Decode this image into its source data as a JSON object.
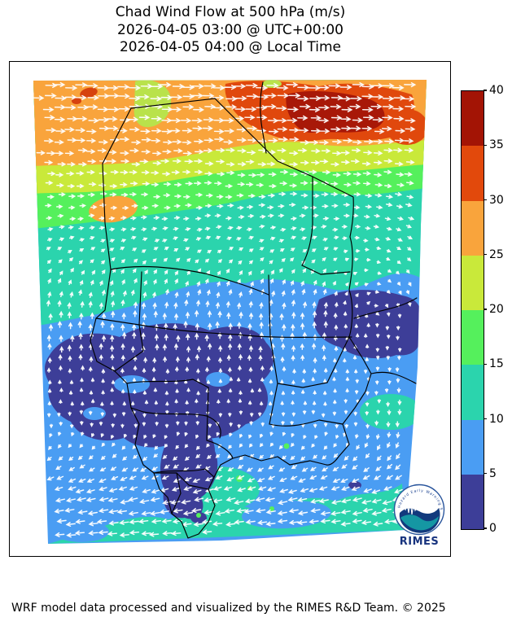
{
  "title": {
    "line1": "Chad Wind Flow at 500 hPa (m/s)",
    "line2": "2026-04-05 03:00 @ UTC+00:00",
    "line3": "2026-04-05 04:00 @ Local Time"
  },
  "footer": {
    "credit": "WRF model data processed and visualized by the RIMES R&D Team. © 2025"
  },
  "colorbar": {
    "min": 0,
    "max": 40,
    "step": 5,
    "tick_labels": [
      "40",
      "35",
      "30",
      "25",
      "20",
      "15",
      "10",
      "5",
      "0"
    ],
    "segments_top_to_bottom": [
      {
        "from": 35,
        "to": 40,
        "color": "#a31405"
      },
      {
        "from": 30,
        "to": 35,
        "color": "#e2490c"
      },
      {
        "from": 25,
        "to": 30,
        "color": "#f9a43c"
      },
      {
        "from": 20,
        "to": 25,
        "color": "#c9e93a"
      },
      {
        "from": 15,
        "to": 20,
        "color": "#55f05c"
      },
      {
        "from": 10,
        "to": 15,
        "color": "#2bd4ad"
      },
      {
        "from": 5,
        "to": 10,
        "color": "#4a9df3"
      },
      {
        "from": 0,
        "to": 5,
        "color": "#3d3e98"
      }
    ]
  },
  "logo": {
    "wordmark": "RIMES",
    "ring_text": "Hazard Early Warning System"
  },
  "map": {
    "country": "Chad",
    "arrow_color": "#ffffff",
    "border_color": "#000000"
  },
  "chart_data": {
    "type": "heatmap",
    "title": "Chad Wind Flow at 500 hPa (m/s)",
    "valid_time_utc": "2026-04-05 03:00 @ UTC+00:00",
    "valid_time_local": "2026-04-05 04:00 @ Local Time",
    "variable": "wind speed with flow vectors",
    "units": "m/s",
    "colorbar_range": [
      0,
      40
    ],
    "colorbar_step": 5,
    "legend_position": "right",
    "regions_north_to_south": [
      {
        "zone": "far north (Libya border strip)",
        "speed_ms": [
          25,
          38
        ],
        "flow": "strong westerly jet, arrows point east; red 30-38 m/s patches in northeast"
      },
      {
        "zone": "north-central",
        "speed_ms": [
          15,
          25
        ],
        "flow": "west-southwesterly, arrows point east-northeast"
      },
      {
        "zone": "central belt",
        "speed_ms": [
          10,
          15
        ],
        "flow": "southwesterly, arrows point northeast"
      },
      {
        "zone": "south-central calm cores",
        "speed_ms": [
          0,
          5
        ],
        "flow": "weak variable winds (dark indigo blobs, short arrows)"
      },
      {
        "zone": "southern belt",
        "speed_ms": [
          5,
          10
        ],
        "flow": "northward then turning south-westward around calm cores"
      },
      {
        "zone": "far south",
        "speed_ms": [
          10,
          15
        ],
        "flow": "easterlies, arrows point west"
      }
    ]
  }
}
